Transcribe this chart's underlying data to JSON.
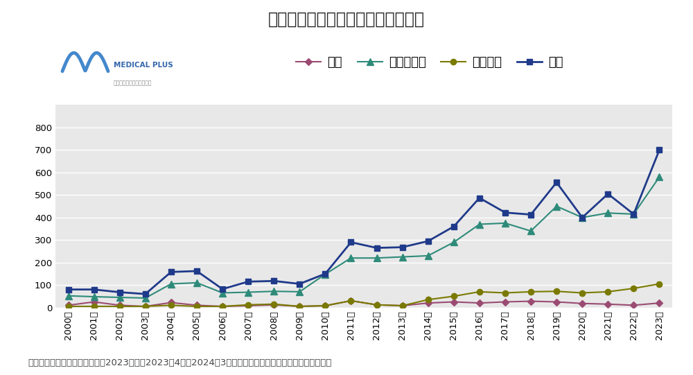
{
  "title": "医療機関の休廃業・解散件数の推移",
  "footnote": "＊データ：帝国データバンク「2023年度（2023年4月〜2024年3月）の医療機関の休廃業・解散件数」より",
  "years": [
    2000,
    2001,
    2002,
    2003,
    2004,
    2005,
    2006,
    2007,
    2008,
    2009,
    2010,
    2011,
    2012,
    2013,
    2014,
    2015,
    2016,
    2017,
    2018,
    2019,
    2020,
    2021,
    2022,
    2023
  ],
  "series": {
    "病院": {
      "color": "#9B4B72",
      "marker": "D",
      "markersize": 5,
      "linewidth": 1.5,
      "values": [
        10,
        25,
        10,
        5,
        22,
        10,
        5,
        8,
        12,
        5,
        8,
        30,
        12,
        8,
        20,
        25,
        20,
        25,
        28,
        25,
        18,
        15,
        10,
        20
      ]
    },
    "クリニック": {
      "color": "#2E8B7A",
      "marker": "^",
      "markersize": 7,
      "linewidth": 1.5,
      "values": [
        52,
        48,
        45,
        42,
        105,
        110,
        65,
        68,
        72,
        70,
        148,
        220,
        220,
        225,
        230,
        290,
        370,
        375,
        340,
        450,
        400,
        420,
        415,
        580
      ]
    },
    "歯科医院": {
      "color": "#7A7A00",
      "marker": "o",
      "markersize": 6,
      "linewidth": 1.5,
      "values": [
        5,
        5,
        5,
        5,
        10,
        5,
        5,
        12,
        15,
        5,
        8,
        30,
        12,
        8,
        35,
        50,
        70,
        65,
        70,
        72,
        65,
        70,
        85,
        105
      ]
    },
    "全体": {
      "color": "#1F3A8A",
      "marker": "s",
      "markersize": 6,
      "linewidth": 2.0,
      "values": [
        80,
        80,
        68,
        60,
        158,
        162,
        82,
        115,
        118,
        105,
        150,
        290,
        265,
        268,
        295,
        360,
        487,
        422,
        413,
        556,
        400,
        505,
        415,
        700
      ]
    }
  },
  "legend_order": [
    "病院",
    "クリニック",
    "歯科医院",
    "全体"
  ],
  "ylim": [
    0,
    900
  ],
  "yticks": [
    0,
    100,
    200,
    300,
    400,
    500,
    600,
    700,
    800
  ],
  "plot_bg_color": "#E8E8E8",
  "title_fontsize": 17,
  "legend_fontsize": 13,
  "tick_fontsize": 9.5,
  "footnote_fontsize": 9.5
}
